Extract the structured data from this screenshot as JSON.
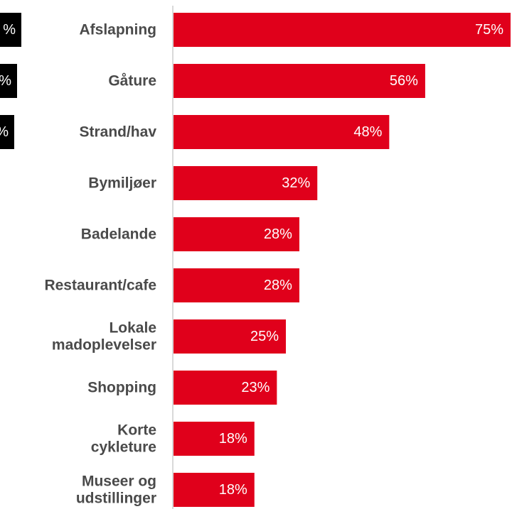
{
  "chart_data": {
    "type": "bar",
    "orientation": "horizontal",
    "categories": [
      "Afslapning",
      "Gåture",
      "Strand/hav",
      "Bymiljøer",
      "Badelande",
      "Restaurant/cafe",
      "Lokale madoplevelser",
      "Shopping",
      "Korte cykleture",
      "Museer og udstillinger"
    ],
    "category_lines": [
      [
        "Afslapning"
      ],
      [
        "Gåture"
      ],
      [
        "Strand/hav"
      ],
      [
        "Bymiljøer"
      ],
      [
        "Badelande"
      ],
      [
        "Restaurant/cafe"
      ],
      [
        "Lokale",
        "madoplevelser"
      ],
      [
        "Shopping"
      ],
      [
        "Korte",
        "cykleture"
      ],
      [
        "Museer og",
        "udstillinger"
      ]
    ],
    "values": [
      75,
      56,
      48,
      32,
      28,
      28,
      25,
      23,
      18,
      18
    ],
    "value_labels": [
      "75%",
      "56%",
      "48%",
      "32%",
      "28%",
      "28%",
      "25%",
      "23%",
      "18%",
      "18%"
    ],
    "xlim": [
      0,
      75
    ],
    "bar_color": "#e0001b",
    "axis_color": "#d9d9d9",
    "side_badges": [
      {
        "text": "%",
        "color": "#000000"
      },
      {
        "text": "%",
        "color": "#000000"
      },
      {
        "text": "%",
        "color": "#000000"
      }
    ]
  }
}
